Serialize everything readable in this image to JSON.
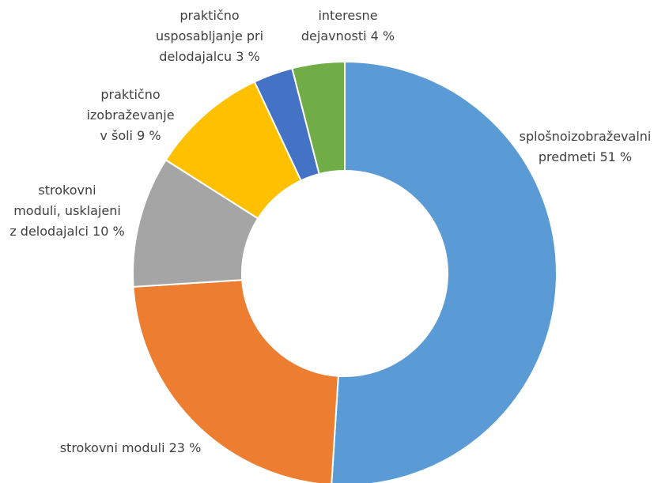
{
  "chart_data": {
    "type": "donut",
    "categories": [
      "splošnoizobraževalni\npredmeti",
      "strokovni moduli",
      "strokovni\nmoduli, usklajeni\nz delodajalci",
      "praktično\nizobraževanje\nv šoli",
      "praktično\nusposabljanje pri\ndelodajalcu",
      "interesne\ndejavnosti"
    ],
    "values": [
      51,
      23,
      10,
      9,
      3,
      4
    ],
    "value_labels": [
      "51 %",
      "23 %",
      "10 %",
      "9 %",
      "3 %",
      "4 %"
    ],
    "colors": [
      "#5b9bd5",
      "#ed7d31",
      "#a5a5a5",
      "#ffc000",
      "#4472c4",
      "#70ad47"
    ]
  }
}
